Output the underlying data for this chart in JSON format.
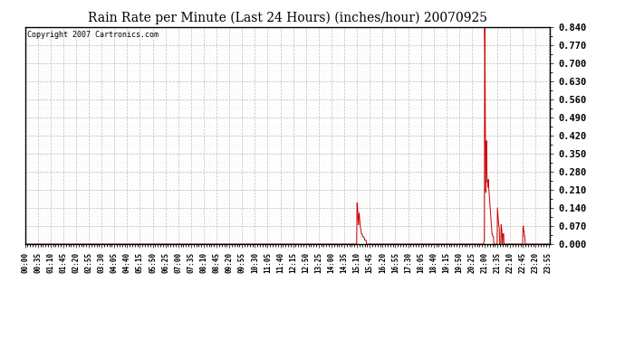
{
  "title": "Rain Rate per Minute (Last 24 Hours) (inches/hour) 20070925",
  "copyright": "Copyright 2007 Cartronics.com",
  "line_color": "#cc0000",
  "bg_color": "#ffffff",
  "plot_bg_color": "#ffffff",
  "grid_major_color": "#bbbbbb",
  "grid_minor_color": "#dddddd",
  "ylim": [
    0.0,
    0.84
  ],
  "yticks": [
    0.0,
    0.07,
    0.14,
    0.21,
    0.28,
    0.35,
    0.42,
    0.49,
    0.56,
    0.63,
    0.7,
    0.77,
    0.84
  ],
  "xlabel_fontsize": 5.5,
  "ylabel_fontsize": 7.5,
  "title_fontsize": 10,
  "copyright_fontsize": 6.0,
  "xtick_step": 35,
  "n_minutes": 1440
}
